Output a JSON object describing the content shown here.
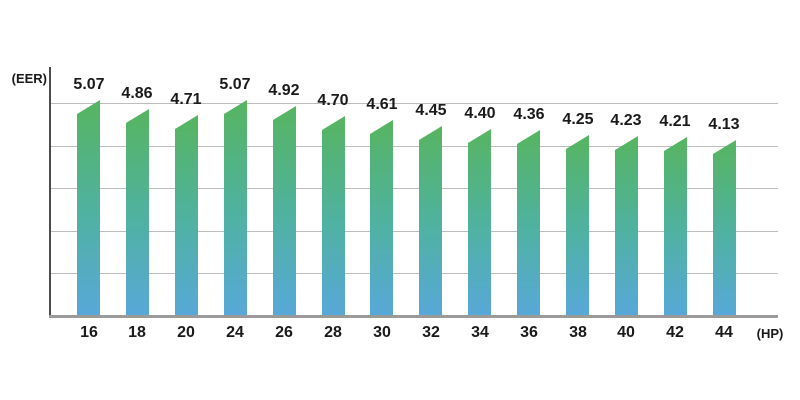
{
  "chart_data": {
    "type": "bar",
    "title": "",
    "categories": [
      "16",
      "18",
      "20",
      "24",
      "26",
      "28",
      "30",
      "32",
      "34",
      "36",
      "38",
      "40",
      "42",
      "44"
    ],
    "values": [
      5.07,
      4.86,
      4.71,
      5.07,
      4.92,
      4.7,
      4.61,
      4.45,
      4.4,
      4.36,
      4.25,
      4.23,
      4.21,
      4.13
    ],
    "xlabel": "(HP)",
    "ylabel": "(EER)",
    "ylim": [
      0,
      5.85
    ],
    "gridline_values": [
      1,
      2,
      3,
      4,
      5
    ],
    "grid": true,
    "legend": false,
    "colors": {
      "bar_gradient_top": "#57b460",
      "bar_gradient_mid": "#4fb2a0",
      "bar_gradient_bottom": "#58a8d9",
      "gridline": "#bdbdbd",
      "y_axis": "#4c4c4c",
      "x_axis": "#9a9a9a",
      "text": "#1a1a1a"
    }
  }
}
